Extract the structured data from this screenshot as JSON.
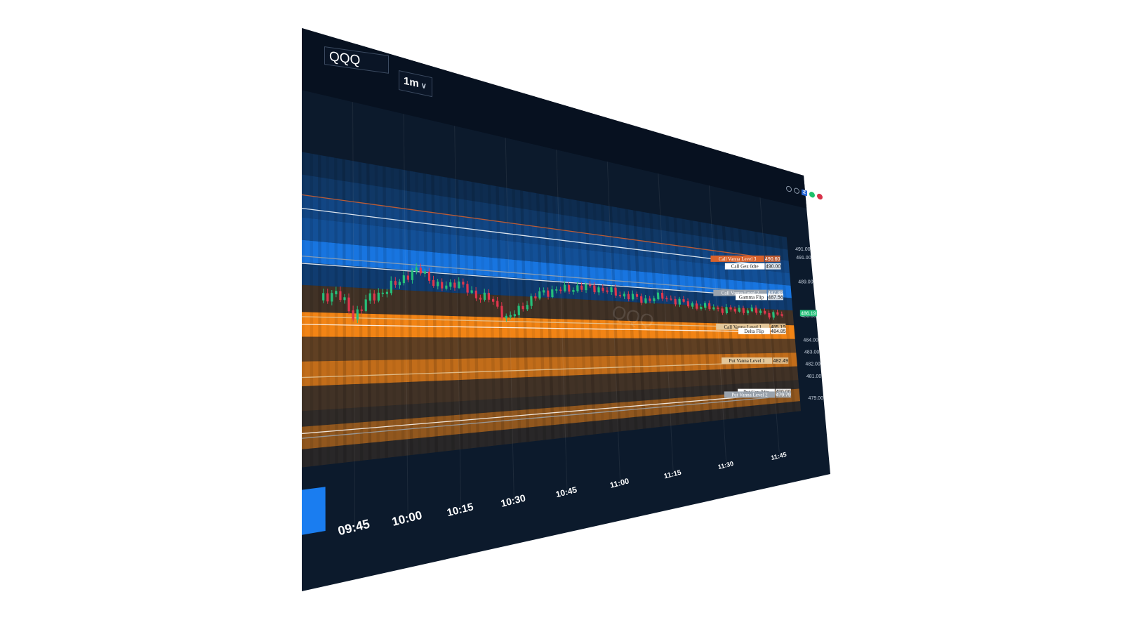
{
  "toolbar": {
    "symbol": "QQQ",
    "interval": "1m",
    "layout_count": "2"
  },
  "watermark": "QQQ",
  "colors": {
    "background": "#0c1a2c",
    "call_heat": "#1a7df0",
    "put_heat": "#ff8a14",
    "candle_up": "#26c07a",
    "candle_down": "#e0364e"
  },
  "price_axis": {
    "ticks": [
      "491.00",
      "491.00",
      "489.00",
      "486.00",
      "484.00",
      "483.00",
      "482.00",
      "481.00",
      "479.00"
    ],
    "current_price": "486.19"
  },
  "time_axis": {
    "ticks": [
      "09:45",
      "10:00",
      "10:15",
      "10:30",
      "10:45",
      "11:00",
      "11:15",
      "11:30",
      "11:45"
    ]
  },
  "levels": [
    {
      "name": "Call Vanna Level 3",
      "value": "490.60",
      "color": "#d9622b"
    },
    {
      "name": "Call Gex 0dte",
      "value": "490.00",
      "color": "#ffffff"
    },
    {
      "name": "Call Vanna Level 2",
      "value": "487.88",
      "color": "#9aa3ad"
    },
    {
      "name": "Gamma Flip",
      "value": "487.56",
      "color": "#ffffff"
    },
    {
      "name": "Call Vanna Level 1",
      "value": "485.19",
      "color": "#e3c79a"
    },
    {
      "name": "Delta Flip",
      "value": "484.85",
      "color": "#ffffff"
    },
    {
      "name": "Put Vanna Level 1",
      "value": "482.49",
      "color": "#e3c79a"
    },
    {
      "name": "Put Gex 0dte",
      "value": "480.00",
      "color": "#ffffff"
    },
    {
      "name": "Put Vanna Level 2",
      "value": "479.79",
      "color": "#9aa3ad"
    }
  ],
  "chart_data": {
    "type": "candlestick",
    "title": "",
    "xlabel": "",
    "ylabel": "",
    "x_ticks": [
      "09:45",
      "10:00",
      "10:15",
      "10:30",
      "10:45",
      "11:00",
      "11:15",
      "11:30",
      "11:45"
    ],
    "ylim": [
      478.5,
      492.5
    ],
    "levels": [
      {
        "name": "Call Vanna Level 3",
        "y": 490.6
      },
      {
        "name": "Call Gex 0dte",
        "y": 490.0
      },
      {
        "name": "Call Vanna Level 2",
        "y": 487.88
      },
      {
        "name": "Gamma Flip",
        "y": 487.56
      },
      {
        "name": "Call Vanna Level 1",
        "y": 485.19
      },
      {
        "name": "Delta Flip",
        "y": 484.85
      },
      {
        "name": "Put Vanna Level 1",
        "y": 482.49
      },
      {
        "name": "Put Gex 0dte",
        "y": 480.0
      },
      {
        "name": "Put Vanna Level 2",
        "y": 479.79
      }
    ],
    "price_path": [
      [
        "09:35",
        486.0
      ],
      [
        "09:40",
        486.4
      ],
      [
        "09:45",
        485.3
      ],
      [
        "09:50",
        486.2
      ],
      [
        "09:55",
        486.6
      ],
      [
        "10:00",
        487.3
      ],
      [
        "10:05",
        487.7
      ],
      [
        "10:10",
        486.8
      ],
      [
        "10:15",
        487.2
      ],
      [
        "10:20",
        486.6
      ],
      [
        "10:25",
        486.4
      ],
      [
        "10:30",
        485.3
      ],
      [
        "10:35",
        486.2
      ],
      [
        "10:40",
        486.9
      ],
      [
        "10:45",
        487.1
      ],
      [
        "10:50",
        487.3
      ],
      [
        "10:55",
        487.4
      ],
      [
        "11:00",
        487.2
      ],
      [
        "11:05",
        487.0
      ],
      [
        "11:10",
        486.8
      ],
      [
        "11:15",
        487.1
      ],
      [
        "11:20",
        486.8
      ],
      [
        "11:25",
        486.6
      ],
      [
        "11:30",
        486.5
      ],
      [
        "11:35",
        486.4
      ],
      [
        "11:40",
        486.5
      ],
      [
        "11:45",
        486.3
      ],
      [
        "11:50",
        486.19
      ]
    ]
  }
}
